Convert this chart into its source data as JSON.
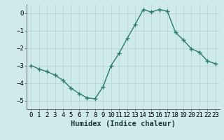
{
  "x": [
    0,
    1,
    2,
    3,
    4,
    5,
    6,
    7,
    8,
    9,
    10,
    11,
    12,
    13,
    14,
    15,
    16,
    17,
    18,
    19,
    20,
    21,
    22,
    23
  ],
  "y": [
    -3.0,
    -3.2,
    -3.35,
    -3.55,
    -3.85,
    -4.3,
    -4.6,
    -4.85,
    -4.9,
    -4.2,
    -3.0,
    -2.3,
    -1.45,
    -0.65,
    0.2,
    0.05,
    0.2,
    0.1,
    -1.1,
    -1.55,
    -2.05,
    -2.25,
    -2.75,
    -2.9
  ],
  "line_color": "#2d7a6e",
  "marker": "+",
  "marker_size": 4,
  "bg_color": "#ceeaea",
  "grid_color": "#b8d4d4",
  "xlabel": "Humidex (Indice chaleur)",
  "ylim": [
    -5.5,
    0.5
  ],
  "yticks": [
    0,
    -1,
    -2,
    -3,
    -4,
    -5
  ],
  "xlabel_fontsize": 7.5,
  "tick_fontsize": 6.5,
  "line_width": 1.0
}
